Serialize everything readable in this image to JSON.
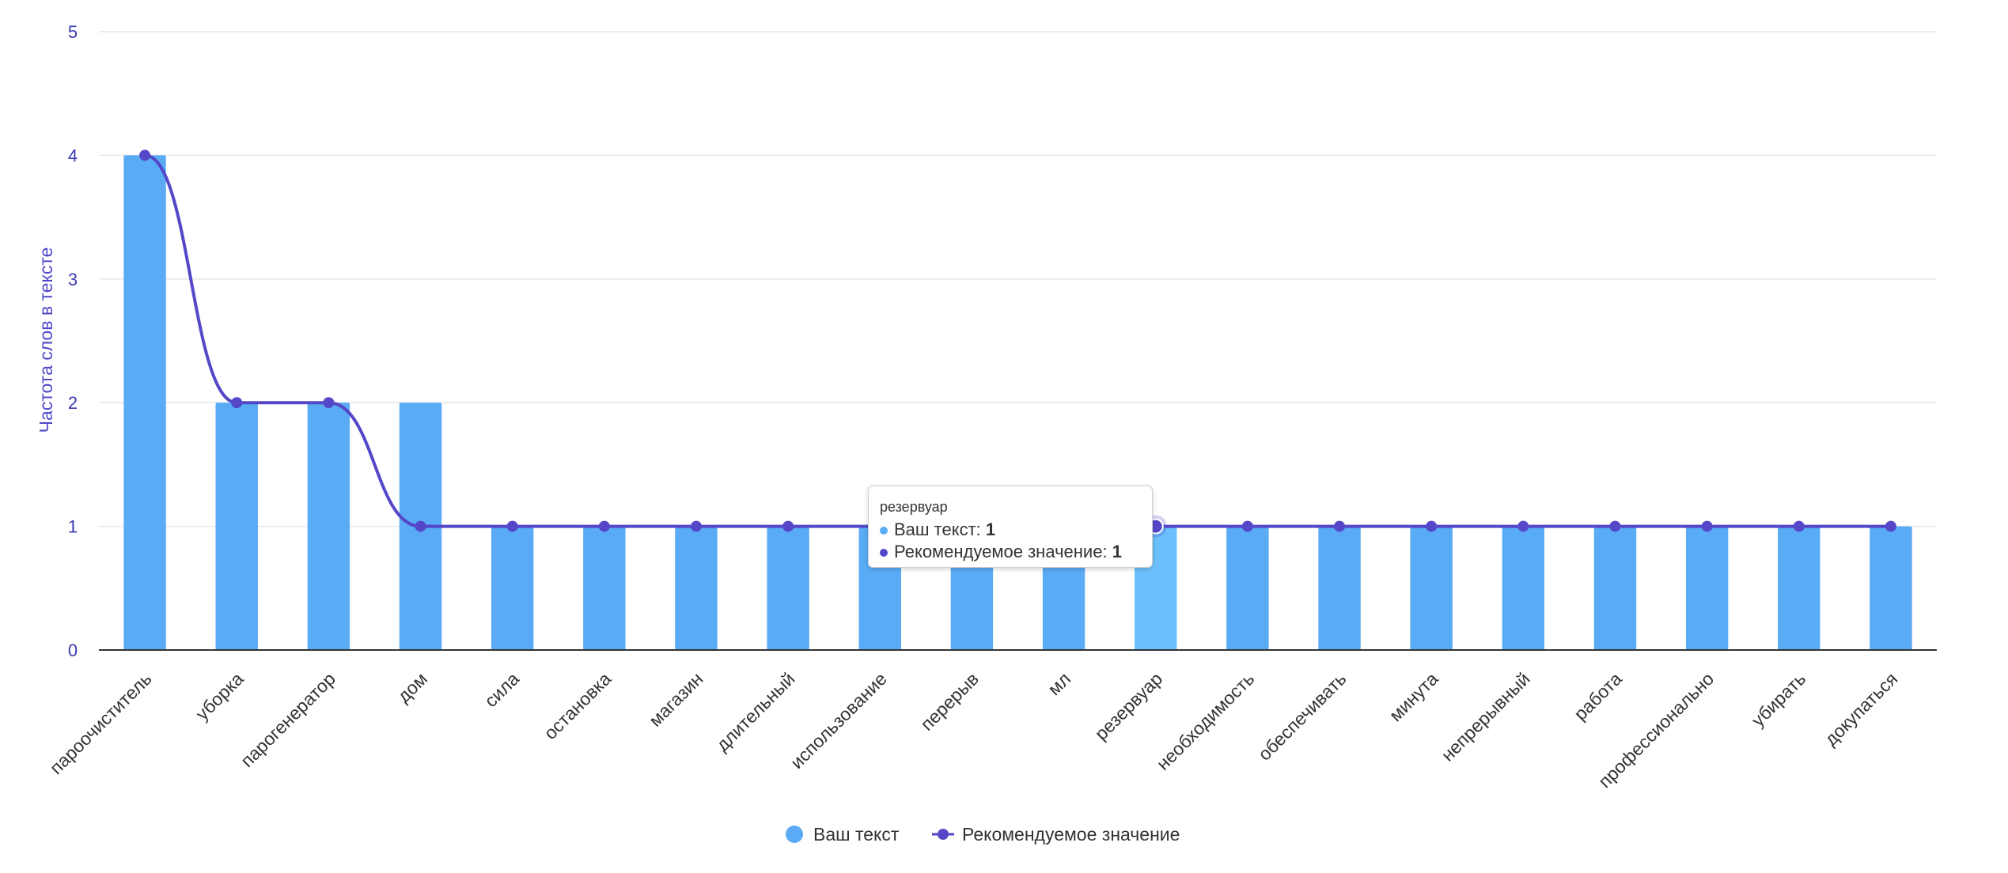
{
  "chart_data": {
    "type": "bar",
    "ylabel": "Частота слов в тексте",
    "ylim": [
      0,
      5
    ],
    "yticks": [
      0,
      1,
      2,
      3,
      4,
      5
    ],
    "grid": true,
    "legend_position": "bottom-center",
    "categories": [
      "пароочиститель",
      "уборка",
      "парогенератор",
      "дом",
      "сила",
      "остановка",
      "магазин",
      "длительный",
      "использование",
      "перерыв",
      "мл",
      "резервуар",
      "необходимость",
      "обеспечивать",
      "минута",
      "непрерывный",
      "работа",
      "профессионально",
      "убирать",
      "докупаться"
    ],
    "series": [
      {
        "name": "Ваш текст",
        "type": "bar",
        "color": "#5aabf5",
        "values": [
          4,
          2,
          2,
          2,
          1,
          1,
          1,
          1,
          1,
          1,
          1,
          1,
          1,
          1,
          1,
          1,
          1,
          1,
          1,
          1
        ]
      },
      {
        "name": "Рекомендуемое значение",
        "type": "line",
        "color": "#5548c8",
        "values": [
          4,
          2,
          2,
          1,
          1,
          1,
          1,
          1,
          1,
          1,
          1,
          1,
          1,
          1,
          1,
          1,
          1,
          1,
          1,
          1
        ]
      }
    ],
    "highlight_index": 11,
    "highlight_color": "#6bc0fb"
  },
  "tooltip": {
    "title": "резервуар",
    "label_1": "Ваш текст: ",
    "value_1": "1",
    "label_2": "Рекомендуемое значение: ",
    "value_2": "1"
  }
}
